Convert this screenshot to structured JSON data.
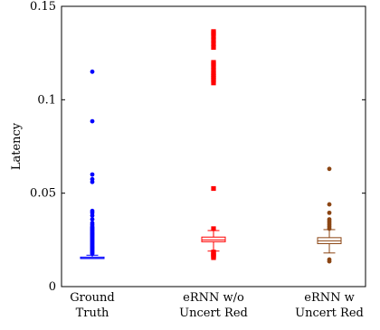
{
  "chart_data": {
    "type": "box",
    "ylabel": "Latency",
    "ylim": [
      0,
      0.15
    ],
    "yticks": [
      {
        "value": 0,
        "label": "0"
      },
      {
        "value": 0.05,
        "label": "0.05"
      },
      {
        "value": 0.1,
        "label": "0.1"
      },
      {
        "value": 0.15,
        "label": "0.15"
      }
    ],
    "grid": false,
    "series": [
      {
        "name_lines": [
          "Ground",
          "Truth"
        ],
        "color": "#0000ff",
        "marker": "circle",
        "whisker_low": 0.015,
        "q1": 0.015,
        "median": 0.0152,
        "q3": 0.0158,
        "whisker_high": 0.0168,
        "outliers": [
          0.0175,
          0.018,
          0.0185,
          0.019,
          0.0195,
          0.02,
          0.0205,
          0.021,
          0.0215,
          0.022,
          0.0225,
          0.023,
          0.0235,
          0.024,
          0.0245,
          0.025,
          0.0255,
          0.026,
          0.0265,
          0.027,
          0.0275,
          0.028,
          0.0285,
          0.029,
          0.0295,
          0.03,
          0.0305,
          0.031,
          0.0315,
          0.032,
          0.033,
          0.034,
          0.036,
          0.038,
          0.0395,
          0.0405,
          0.056,
          0.0575,
          0.06,
          0.0885,
          0.115
        ]
      },
      {
        "name_lines": [
          "eRNN w/o",
          "Uncert Red"
        ],
        "color": "#ff0000",
        "marker": "square",
        "whisker_low": 0.019,
        "q1": 0.024,
        "median": 0.025,
        "q3": 0.0265,
        "whisker_high": 0.03,
        "outliers": [
          0.0155,
          0.016,
          0.0165,
          0.017,
          0.0175,
          0.018,
          0.0185,
          0.031,
          0.0525,
          0.109,
          0.1105,
          0.1115,
          0.1125,
          0.1135,
          0.1145,
          0.116,
          0.1175,
          0.119,
          0.12,
          0.128,
          0.13,
          0.132,
          0.134,
          0.1355,
          0.1365
        ]
      },
      {
        "name_lines": [
          "eRNN w",
          "Uncert Red"
        ],
        "color": "#8b4513",
        "marker": "circle",
        "whisker_low": 0.018,
        "q1": 0.023,
        "median": 0.0245,
        "q3": 0.0262,
        "whisker_high": 0.0305,
        "outliers": [
          0.0135,
          0.0145,
          0.031,
          0.032,
          0.033,
          0.034,
          0.035,
          0.036,
          0.0395,
          0.044,
          0.063
        ]
      }
    ]
  }
}
